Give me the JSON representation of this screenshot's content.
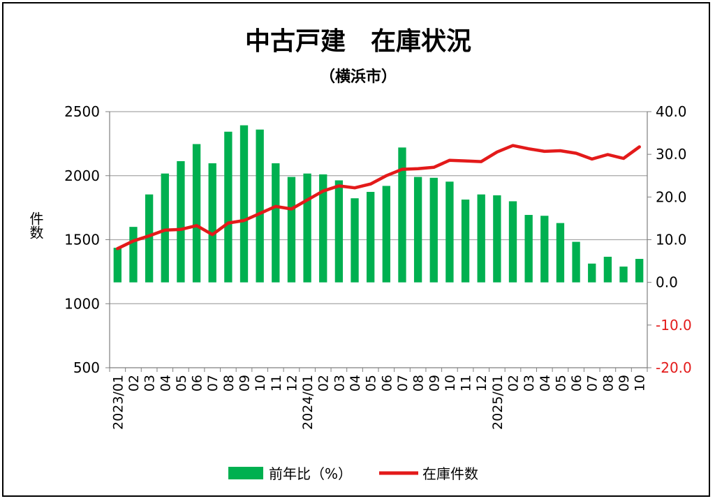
{
  "chart_data": {
    "type": "bar+line",
    "title": "中古戸建　在庫状況",
    "subtitle": "（横浜市）",
    "ylabel_left": "件数",
    "categories": [
      "2023/01",
      "02",
      "03",
      "04",
      "05",
      "06",
      "07",
      "08",
      "09",
      "10",
      "11",
      "12",
      "2024/01",
      "02",
      "03",
      "04",
      "05",
      "06",
      "07",
      "08",
      "09",
      "10",
      "11",
      "12",
      "2025/01",
      "02",
      "03",
      "04",
      "05",
      "06",
      "07",
      "08",
      "09",
      "10"
    ],
    "left_axis": {
      "min": 500,
      "max": 2500,
      "ticks": [
        "500",
        "1000",
        "1500",
        "2000",
        "2500"
      ]
    },
    "right_axis": {
      "min": -20,
      "max": 40,
      "ticks": [
        "-20.0",
        "-10.0",
        "0.0",
        "10.0",
        "20.0",
        "30.0",
        "40.0"
      ]
    },
    "grid": true,
    "legend_position": "bottom",
    "series": [
      {
        "name": "前年比（%）",
        "type": "bar",
        "axis": "right",
        "color": "#00B050",
        "values": [
          8.1,
          13.0,
          20.6,
          25.5,
          28.4,
          32.4,
          27.9,
          35.3,
          36.8,
          35.8,
          27.9,
          24.7,
          25.5,
          25.3,
          23.9,
          19.7,
          21.2,
          22.6,
          31.6,
          24.7,
          24.5,
          23.6,
          19.4,
          20.6,
          20.4,
          19.0,
          15.8,
          15.6,
          13.9,
          9.5,
          4.4,
          6.0,
          3.7,
          5.5
        ]
      },
      {
        "name": "在庫件数",
        "type": "line",
        "axis": "left",
        "color": "#E31A1A",
        "values": [
          1430,
          1490,
          1530,
          1575,
          1580,
          1610,
          1540,
          1630,
          1650,
          1705,
          1760,
          1740,
          1810,
          1880,
          1920,
          1905,
          1935,
          2000,
          2050,
          2055,
          2065,
          2120,
          2115,
          2110,
          2185,
          2235,
          2210,
          2190,
          2195,
          2175,
          2130,
          2165,
          2135,
          2225
        ]
      }
    ]
  },
  "colors": {
    "bar": "#00B050",
    "line": "#E31A1A",
    "right_tick_negative": "#E31A1A",
    "grid": "#A6A6A6"
  }
}
